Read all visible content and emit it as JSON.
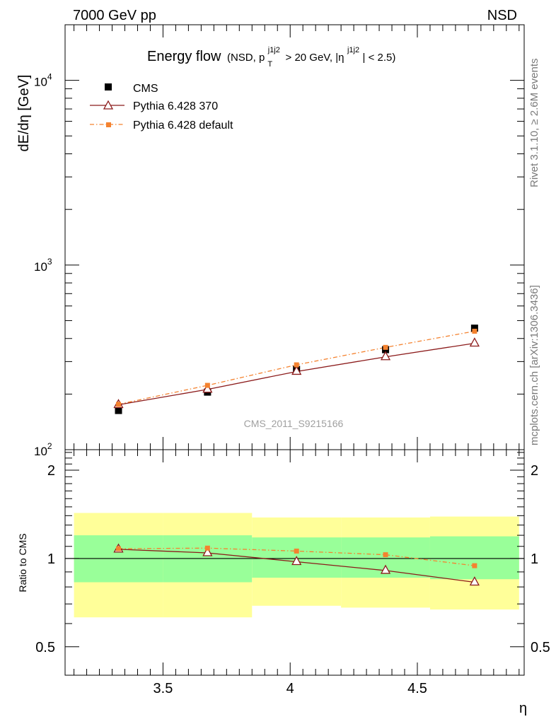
{
  "header": {
    "left": "7000 GeV pp",
    "right": "NSD"
  },
  "side_text": {
    "rivet": "Rivet 3.1.10, ≥ 2.6M events",
    "mcplots": "mcplots.cern.ch [arXiv:1306.3436]"
  },
  "watermark": "CMS_2011_S9215166",
  "colors": {
    "cms": "#000000",
    "pythia370": "#8b1a1a",
    "pythia_default": "#f4822f",
    "band_inner": "#99ff99",
    "band_outer": "#ffff99"
  },
  "chart_data": [
    {
      "type": "line",
      "panel": "main",
      "title": "Energy flow",
      "title_cuts": {
        "open": "(NSD, p",
        "sub": "T",
        "sup": "j1j2",
        "mid": " > 20 GeV, |η",
        "sup2": "j1j2",
        "close": "| < 2.5)"
      },
      "ylabel": "dE/dη [GeV]",
      "ylog": true,
      "ylim": [
        100,
        20000
      ],
      "xlim": [
        3.115,
        4.92
      ],
      "y_ticks": [
        {
          "base": "10",
          "exp": "2",
          "value": 100
        },
        {
          "base": "10",
          "exp": "3",
          "value": 1000
        },
        {
          "base": "10",
          "exp": "4",
          "value": 10000
        }
      ],
      "legend_position": "top-left",
      "x": [
        3.325,
        3.675,
        4.025,
        4.375,
        4.725
      ],
      "series": [
        {
          "name": "CMS",
          "marker": "filled-square",
          "values": [
            163,
            205,
            272,
            348,
            455
          ]
        },
        {
          "name": "Pythia 6.428 370",
          "marker": "open-triangle",
          "line": "solid",
          "values": [
            175,
            212,
            265,
            318,
            377
          ]
        },
        {
          "name": "Pythia 6.428 default",
          "marker": "small-square",
          "line": "dash-dot",
          "values": [
            176,
            223,
            288,
            358,
            438
          ]
        }
      ]
    },
    {
      "type": "line",
      "panel": "ratio",
      "ylabel": "Ratio to CMS",
      "xlabel": "η",
      "ylog": true,
      "ylim": [
        0.4,
        2.35
      ],
      "xlim": [
        3.115,
        4.92
      ],
      "x_ticks": [
        "3.5",
        "4",
        "4.5"
      ],
      "x_tick_values": [
        3.5,
        4.0,
        4.5
      ],
      "y_ticks": [
        "0.5",
        "1",
        "2"
      ],
      "y_tick_values": [
        0.5,
        1,
        2
      ],
      "bins": [
        [
          3.15,
          3.5
        ],
        [
          3.5,
          3.85
        ],
        [
          3.85,
          4.2
        ],
        [
          4.2,
          4.55
        ],
        [
          4.55,
          4.9
        ]
      ],
      "band_inner": [
        [
          0.83,
          1.2
        ],
        [
          0.83,
          1.2
        ],
        [
          0.86,
          1.18
        ],
        [
          0.86,
          1.18
        ],
        [
          0.85,
          1.19
        ]
      ],
      "band_outer": [
        [
          0.63,
          1.43
        ],
        [
          0.63,
          1.43
        ],
        [
          0.69,
          1.38
        ],
        [
          0.68,
          1.38
        ],
        [
          0.67,
          1.39
        ]
      ],
      "x": [
        3.325,
        3.675,
        4.025,
        4.375,
        4.725
      ],
      "series": [
        {
          "name": "Pythia 6.428 370",
          "values": [
            1.075,
            1.045,
            0.975,
            0.91,
            0.83
          ]
        },
        {
          "name": "Pythia 6.428 default",
          "values": [
            1.08,
            1.085,
            1.06,
            1.03,
            0.945
          ]
        }
      ]
    }
  ]
}
